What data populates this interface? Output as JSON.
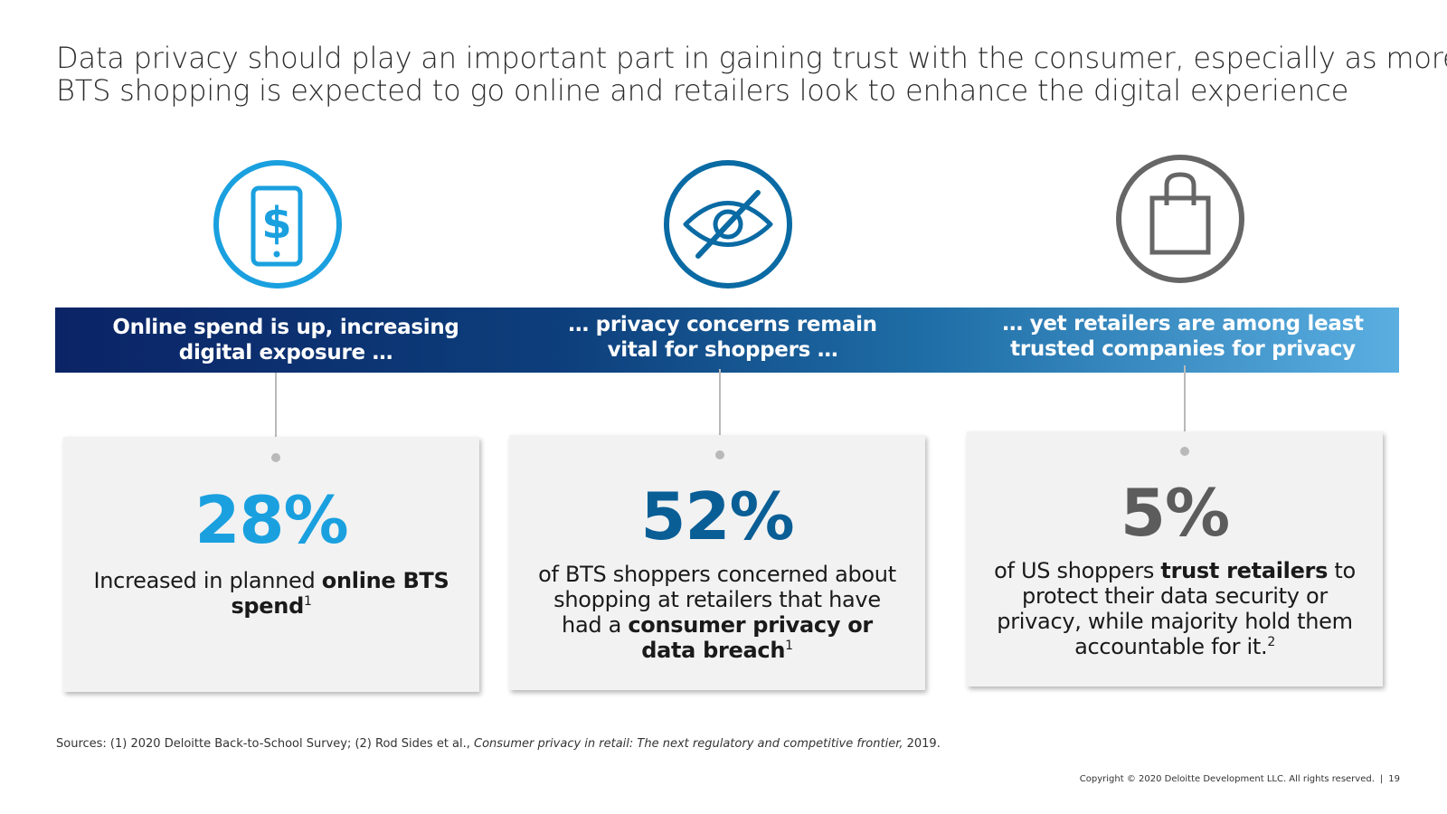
{
  "headline": {
    "line1": "Data privacy should play an important part in gaining trust with the consumer, especially as more",
    "line2": "BTS shopping is expected to go online and retailers look to enhance the digital experience"
  },
  "icons": [
    {
      "name": "phone-dollar-icon",
      "color": "#1aa0df"
    },
    {
      "name": "eye-slash-icon",
      "color": "#0a6aa3"
    },
    {
      "name": "shopping-bag-icon",
      "color": "#666666"
    }
  ],
  "band": {
    "colors": [
      "#0b2466",
      "#5aaee0"
    ],
    "labels": [
      {
        "line1": "Online spend is up, increasing",
        "line2": "digital exposure …"
      },
      {
        "line1": "… privacy concerns remain",
        "line2": "vital for shoppers …"
      },
      {
        "line1": "… yet retailers are among least",
        "line2": "trusted companies for privacy"
      }
    ]
  },
  "cards": [
    {
      "stat": "28%",
      "color": "#1aa0df",
      "text_a": "Increased in planned ",
      "bold_a": "online BTS spend",
      "sup": "1"
    },
    {
      "stat": "52%",
      "color": "#0a5e96",
      "text_a": "of BTS shoppers concerned about shopping at retailers that have had a ",
      "bold_a": "consumer privacy or data breach",
      "sup": "1"
    },
    {
      "stat": "5%",
      "color": "#5c5c5c",
      "text_a": "of US shoppers ",
      "bold_a": "trust retailers",
      "text_b": " to protect their data security or privacy, while majority hold them accountable for it.",
      "sup": "2"
    }
  ],
  "sources": {
    "prefix": "Sources: (1) 2020 Deloitte Back-to-School Survey; (2) Rod Sides et al., ",
    "title": "Consumer privacy in retail: The next regulatory and competitive frontier,",
    "suffix": " 2019."
  },
  "footer": {
    "copyright": "Copyright © 2020 Deloitte Development LLC. All rights reserved.",
    "separator": "|",
    "page_number": "19"
  }
}
